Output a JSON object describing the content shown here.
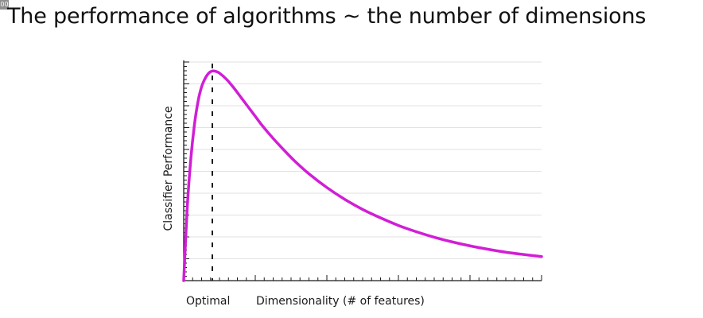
{
  "corner_badge": "00",
  "slide": {
    "title": "The performance of algorithms ~ the number of dimensions"
  },
  "colors": {
    "curve": "#d11ed6",
    "grid": "#e2e2e2",
    "axis": "#1a1a1a",
    "marker": "#1a1a1a"
  },
  "chart_data": {
    "type": "line",
    "title": "The performance of algorithms ~ the number of dimensions",
    "xlabel": "Dimensionality (# of features)",
    "ylabel": "Classifier Performance",
    "x_tick_labels_shown": false,
    "y_tick_labels_shown": false,
    "grid": "horizontal",
    "xlim": [
      0,
      100
    ],
    "ylim": [
      0,
      100
    ],
    "annotations": [
      {
        "type": "vertical-dashed-line",
        "x": 8,
        "label": "Optimal"
      }
    ],
    "series": [
      {
        "x": [
          0,
          1,
          2,
          3,
          4,
          5,
          6,
          7,
          8,
          9,
          10,
          12,
          14,
          16,
          18,
          20,
          22,
          25,
          28,
          31,
          35,
          40,
          45,
          50,
          55,
          60,
          65,
          70,
          75,
          80,
          85,
          90,
          95,
          100
        ],
        "y": [
          0,
          35,
          58,
          74,
          85,
          92,
          96,
          98.5,
          99.5,
          99.3,
          98.5,
          95.5,
          91.5,
          87,
          82.5,
          78,
          73.5,
          67.5,
          62,
          56.8,
          50.7,
          44.2,
          38.6,
          33.8,
          29.8,
          26.2,
          23.2,
          20.6,
          18.4,
          16.5,
          14.9,
          13.5,
          12.4,
          11.4
        ]
      }
    ]
  }
}
